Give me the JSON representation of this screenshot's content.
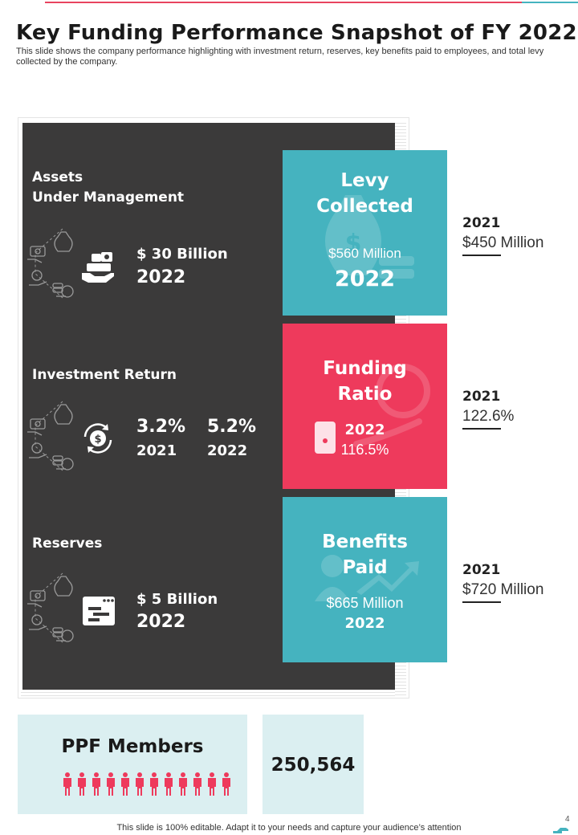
{
  "title": "Key Funding Performance Snapshot of FY 2022",
  "subtitle": "This slide shows the company performance highlighting with investment return, reserves, key benefits paid to employees, and total levy collected by the company.",
  "colors": {
    "teal": "#45b3bf",
    "red": "#ee3a5c",
    "dark": "#3b3a3a",
    "light": "#dbeff1"
  },
  "assets": {
    "label_line1": "Assets",
    "label_line2": "Under Management",
    "icon": "money-hand-icon",
    "amount": "$ 30 Billion",
    "year": "2022"
  },
  "investment": {
    "label": "Investment Return",
    "icon": "dollar-cycle-icon",
    "value_2021": "3.2%",
    "year_2021": "2021",
    "value_2022": "5.2%",
    "year_2022": "2022"
  },
  "reserves": {
    "label": "Reserves",
    "icon": "browser-window-icon",
    "amount": "$ 5 Billion",
    "year": "2022"
  },
  "cards": {
    "levy": {
      "title_line1": "Levy",
      "title_line2": "Collected",
      "value": "$560 Million",
      "year": "2022",
      "icon": "money-bag-icon"
    },
    "funding": {
      "title_line1": "Funding",
      "title_line2": "Ratio",
      "year": "2022",
      "value": "116.5%",
      "icon": "coin-hand-icon"
    },
    "benefits": {
      "title_line1": "Benefits",
      "title_line2": "Paid",
      "value": "$665 Million",
      "year": "2022",
      "icon": "growth-person-icon"
    }
  },
  "prior": {
    "levy": {
      "year": "2021",
      "value": "$450 Million"
    },
    "funding": {
      "year": "2021",
      "value": "122.6%"
    },
    "benefits": {
      "year": "2021",
      "value": "$720 Million"
    }
  },
  "ppf": {
    "title": "PPF Members",
    "count": "250,564",
    "icon": "people-icon"
  },
  "footer": "This slide is 100% editable. Adapt it to your needs and capture your audience’s attention",
  "page_number": "4"
}
